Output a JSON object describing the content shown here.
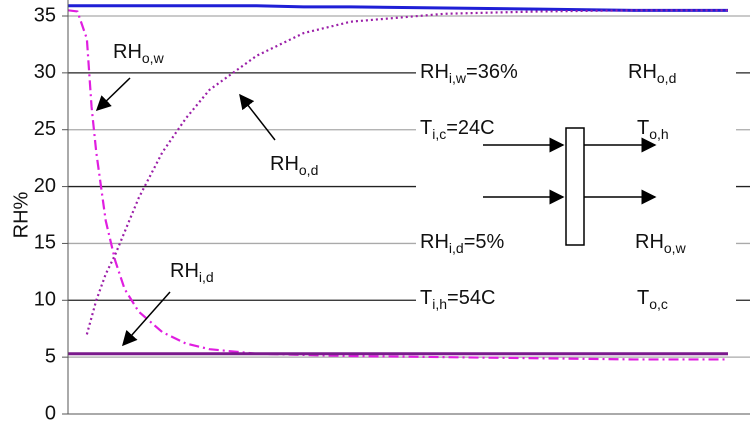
{
  "chart_data": {
    "type": "line",
    "y_label": "RH%",
    "xlim": [
      0,
      1400
    ],
    "ylim": [
      0,
      36
    ],
    "yticks": [
      0,
      5,
      10,
      15,
      20,
      25,
      30,
      35
    ],
    "x": [
      0,
      20,
      40,
      50,
      60,
      80,
      100,
      120,
      150,
      200,
      250,
      300,
      400,
      500,
      600,
      800,
      1000,
      1200,
      1400
    ],
    "series": [
      {
        "name": "RH_i,w",
        "color": "#1f1fd6",
        "style": "solid",
        "values": [
          35.9,
          35.9,
          35.9,
          35.9,
          35.9,
          35.9,
          35.9,
          35.9,
          35.9,
          35.9,
          35.9,
          35.9,
          35.9,
          35.8,
          35.8,
          35.7,
          35.6,
          35.5,
          35.5
        ]
      },
      {
        "name": "RH_o,w",
        "color": "#e01ee0",
        "style": "dashdot",
        "values": [
          35.5,
          35.4,
          33,
          27,
          23,
          17,
          13.5,
          11,
          9,
          7.2,
          6.2,
          5.7,
          5.3,
          5.2,
          5.1,
          5.0,
          4.9,
          4.8,
          4.8
        ]
      },
      {
        "name": "RH_o,d",
        "color": "#9b1fa8",
        "style": "dotted",
        "values": [
          null,
          null,
          7,
          8.5,
          10,
          12.3,
          14,
          16,
          19,
          23,
          26,
          28.5,
          31.5,
          33.5,
          34.5,
          35.2,
          35.4,
          35.5,
          35.5
        ]
      },
      {
        "name": "RH_i,d",
        "color": "#7a1a8c",
        "style": "solid",
        "values": [
          5.3,
          5.3,
          5.3,
          5.3,
          5.3,
          5.3,
          5.3,
          5.3,
          5.3,
          5.3,
          5.3,
          5.3,
          5.3,
          5.3,
          5.3,
          5.3,
          5.3,
          5.3,
          5.3
        ]
      }
    ],
    "annotations": [
      {
        "text": "RH",
        "sub": "o,w"
      },
      {
        "text": "RH",
        "sub": "o,d"
      },
      {
        "text": "RH",
        "sub": "i,d"
      },
      {
        "text": "RH",
        "sub": "i,w",
        "suffix": "=36%"
      },
      {
        "text": "T",
        "sub": "i,c",
        "suffix": "=24C"
      },
      {
        "text": "RH",
        "sub": "i,d",
        "suffix": "=5%"
      },
      {
        "text": "T",
        "sub": "i,h",
        "suffix": "=54C"
      },
      {
        "text": "RH",
        "sub": "o,d"
      },
      {
        "text": "T",
        "sub": "o,h"
      },
      {
        "text": "RH",
        "sub": "o,w"
      },
      {
        "text": "T",
        "sub": "o,c"
      }
    ]
  }
}
